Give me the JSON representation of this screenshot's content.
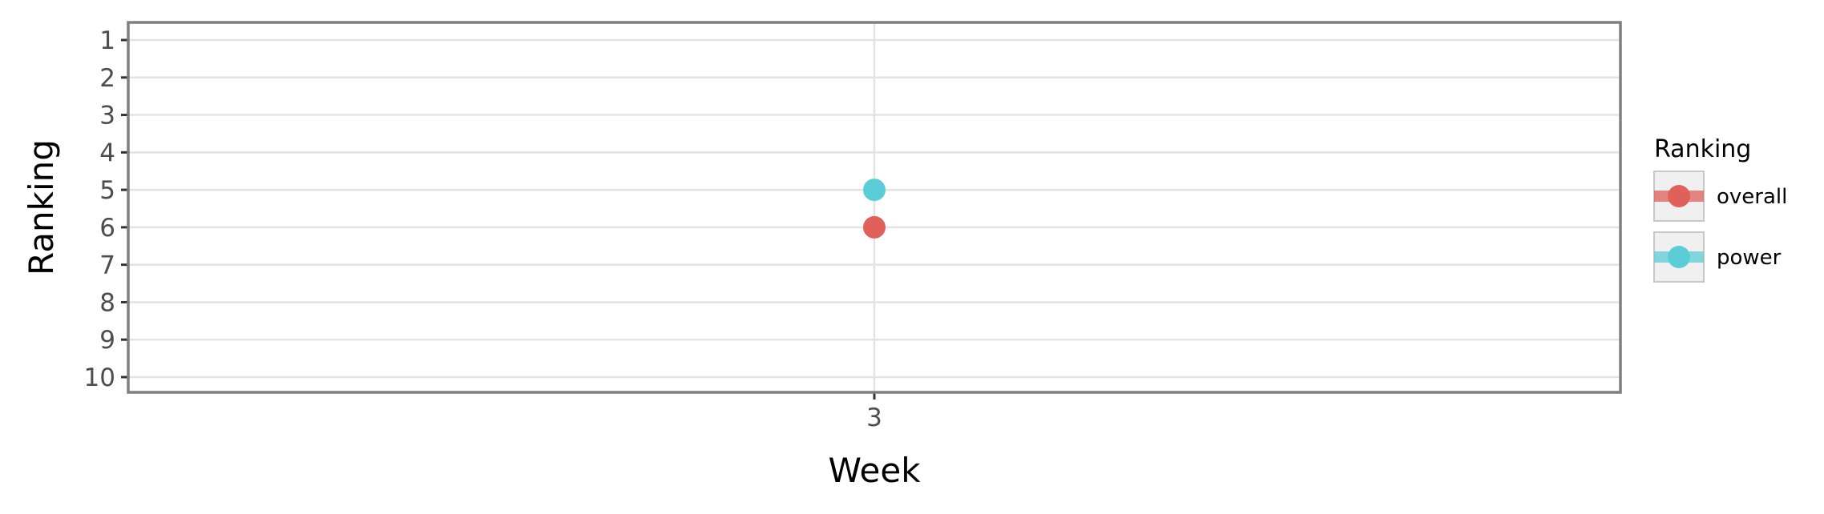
{
  "chart_data": {
    "type": "scatter",
    "xlabel": "Week",
    "ylabel": "Ranking",
    "x_categories": [
      "3"
    ],
    "y_ticks": [
      1,
      2,
      3,
      4,
      5,
      6,
      7,
      8,
      9,
      10
    ],
    "ylim": [
      1,
      10
    ],
    "y_reversed": true,
    "grid": true,
    "legend": {
      "title": "Ranking",
      "placement": "right"
    },
    "series": [
      {
        "name": "overall",
        "color": "#E0605A",
        "x": [
          "3"
        ],
        "y": [
          6
        ]
      },
      {
        "name": "power",
        "color": "#5BCDD6",
        "x": [
          "3"
        ],
        "y": [
          5
        ]
      }
    ]
  }
}
